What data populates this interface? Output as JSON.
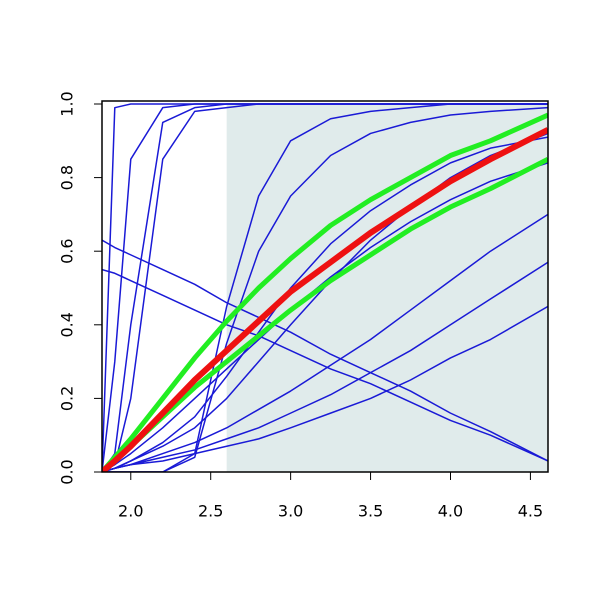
{
  "chart_data": {
    "type": "line",
    "x": [
      1.82,
      1.9,
      2.0,
      2.2,
      2.4,
      2.6,
      2.8,
      3.0,
      3.25,
      3.5,
      3.75,
      4.0,
      4.25,
      4.61
    ],
    "xlim": [
      1.82,
      4.61
    ],
    "ylim": [
      0,
      1
    ],
    "xticks": [
      {
        "value": 2,
        "label": "2.0"
      },
      2.5,
      {
        "value": 3,
        "label": "3.0"
      },
      3.5,
      {
        "value": 4,
        "label": "4.0"
      },
      4.5
    ],
    "yticks": [
      {
        "value": 0,
        "label": "0.0"
      },
      0.2,
      0.4,
      0.6,
      0.8,
      {
        "value": 1,
        "label": "1.0"
      }
    ],
    "shade": [
      2.6,
      4.61
    ],
    "shade_color": "#e0ebeb",
    "series": [
      {
        "color": "#1a1ad6",
        "width": 1.5,
        "values": [
          0,
          0.99,
          1,
          1,
          1,
          1,
          1,
          1,
          1,
          1,
          1,
          1,
          1,
          1
        ]
      },
      {
        "color": "#1a1ad6",
        "width": 1.5,
        "values": [
          0,
          0.3,
          0.85,
          0.99,
          1,
          1,
          1,
          1,
          1,
          1,
          1,
          1,
          1,
          1
        ]
      },
      {
        "color": "#1a1ad6",
        "width": 1.5,
        "values": [
          0,
          0.05,
          0.4,
          0.95,
          0.99,
          1,
          1,
          1,
          1,
          1,
          1,
          1,
          1,
          1
        ]
      },
      {
        "color": "#1a1ad6",
        "width": 1.5,
        "values": [
          0,
          0.02,
          0.2,
          0.85,
          0.98,
          0.99,
          1,
          1,
          1,
          1,
          1,
          1,
          1,
          1
        ]
      },
      {
        "color": "#1a1ad6",
        "width": 1.5,
        "values": [
          0,
          0,
          0,
          0,
          0.05,
          0.45,
          0.75,
          0.9,
          0.96,
          0.98,
          0.99,
          1,
          1,
          1
        ]
      },
      {
        "color": "#1a1ad6",
        "width": 1.5,
        "values": [
          0,
          0,
          0,
          0,
          0.04,
          0.35,
          0.6,
          0.75,
          0.86,
          0.92,
          0.95,
          0.97,
          0.98,
          0.99
        ]
      },
      {
        "color": "#1a1ad6",
        "width": 1.5,
        "values": [
          0,
          0.01,
          0.03,
          0.07,
          0.12,
          0.2,
          0.3,
          0.4,
          0.52,
          0.63,
          0.72,
          0.8,
          0.86,
          0.92
        ]
      },
      {
        "color": "#1a1ad6",
        "width": 1.5,
        "values": [
          0,
          0.01,
          0.02,
          0.05,
          0.08,
          0.12,
          0.17,
          0.22,
          0.29,
          0.36,
          0.44,
          0.52,
          0.6,
          0.7
        ]
      },
      {
        "color": "#1a1ad6",
        "width": 1.5,
        "values": [
          0,
          0.01,
          0.02,
          0.04,
          0.06,
          0.09,
          0.12,
          0.16,
          0.21,
          0.27,
          0.33,
          0.4,
          0.47,
          0.57
        ]
      },
      {
        "color": "#1a1ad6",
        "width": 1.5,
        "values": [
          0,
          0.01,
          0.02,
          0.03,
          0.05,
          0.07,
          0.09,
          0.12,
          0.16,
          0.2,
          0.25,
          0.31,
          0.36,
          0.45
        ]
      },
      {
        "color": "#1a1ad6",
        "width": 1.5,
        "values": [
          0.63,
          0.61,
          0.59,
          0.55,
          0.51,
          0.46,
          0.42,
          0.38,
          0.32,
          0.27,
          0.22,
          0.16,
          0.11,
          0.03
        ]
      },
      {
        "color": "#1a1ad6",
        "width": 1.5,
        "values": [
          0.55,
          0.54,
          0.52,
          0.48,
          0.44,
          0.4,
          0.37,
          0.33,
          0.28,
          0.24,
          0.19,
          0.14,
          0.1,
          0.03
        ]
      },
      {
        "color": "#1a1ad6",
        "width": 1.5,
        "values": [
          0,
          0.01,
          0.03,
          0.08,
          0.15,
          0.26,
          0.38,
          0.5,
          0.62,
          0.71,
          0.78,
          0.84,
          0.88,
          0.91
        ]
      },
      {
        "color": "#1a1ad6",
        "width": 1.5,
        "values": [
          0,
          0.02,
          0.05,
          0.12,
          0.2,
          0.28,
          0.36,
          0.44,
          0.53,
          0.61,
          0.68,
          0.74,
          0.79,
          0.84
        ]
      },
      {
        "color": "#22ee22",
        "width": 5,
        "values": [
          0,
          0.04,
          0.09,
          0.2,
          0.31,
          0.41,
          0.5,
          0.58,
          0.67,
          0.74,
          0.8,
          0.86,
          0.9,
          0.97
        ]
      },
      {
        "color": "#22ee22",
        "width": 5,
        "values": [
          0,
          0.03,
          0.07,
          0.15,
          0.23,
          0.3,
          0.37,
          0.44,
          0.52,
          0.59,
          0.66,
          0.72,
          0.77,
          0.85
        ]
      },
      {
        "color": "#ee1111",
        "width": 6,
        "values": [
          0,
          0.03,
          0.07,
          0.16,
          0.25,
          0.33,
          0.41,
          0.49,
          0.57,
          0.65,
          0.72,
          0.79,
          0.85,
          0.93
        ]
      }
    ]
  }
}
